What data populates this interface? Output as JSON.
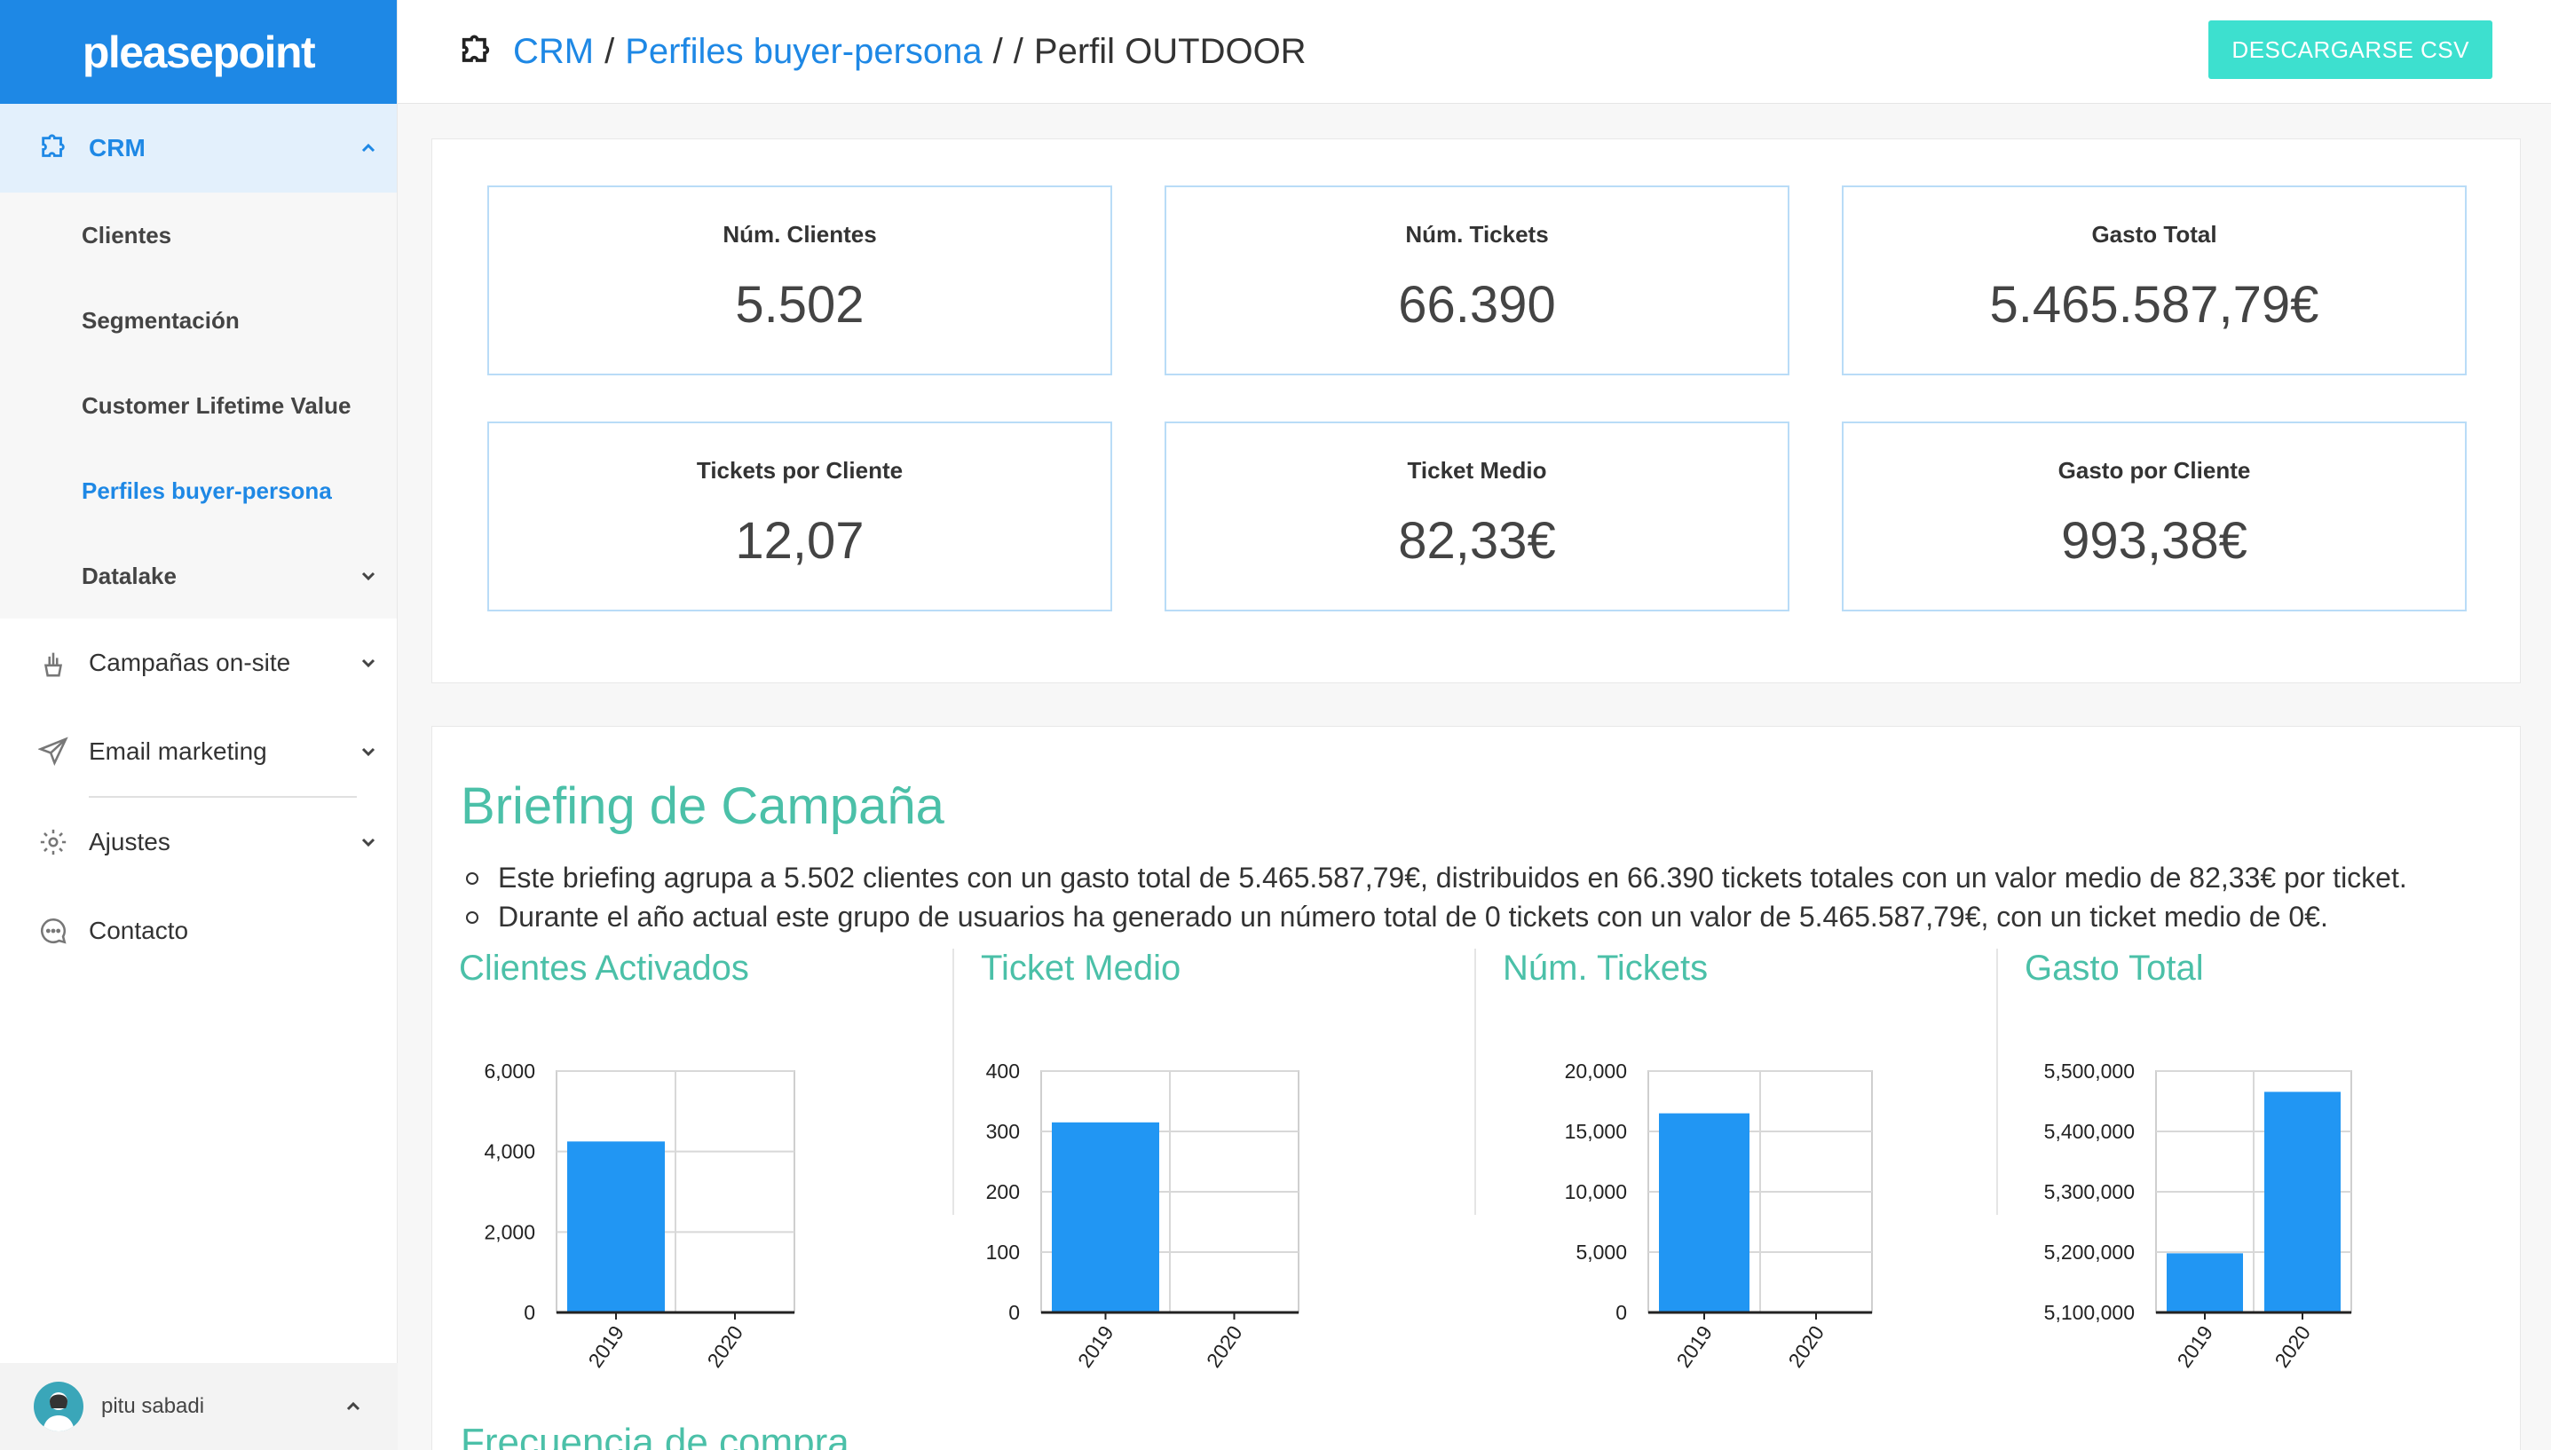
{
  "app": {
    "logo": "pleasepoint"
  },
  "sidebar": {
    "crm": {
      "label": "CRM"
    },
    "crm_items": [
      {
        "label": "Clientes"
      },
      {
        "label": "Segmentación"
      },
      {
        "label": "Customer Lifetime Value"
      },
      {
        "label": "Perfiles buyer-persona",
        "active": true
      },
      {
        "label": "Datalake"
      }
    ],
    "campanas": {
      "label": "Campañas on-site"
    },
    "email": {
      "label": "Email marketing"
    },
    "ajustes": {
      "label": "Ajustes"
    },
    "contacto": {
      "label": "Contacto"
    },
    "user": {
      "name": "pitu sabadi"
    }
  },
  "header": {
    "breadcrumb": [
      {
        "label": "CRM"
      },
      {
        "label": "Perfiles buyer-persona"
      },
      {
        "label": ""
      },
      {
        "label": "Perfil OUTDOOR"
      }
    ],
    "download_label": "DESCARGARSE CSV"
  },
  "kpis": [
    {
      "label": "Núm. Clientes",
      "value": "5.502"
    },
    {
      "label": "Núm. Tickets",
      "value": "66.390"
    },
    {
      "label": "Gasto Total",
      "value": "5.465.587,79€"
    },
    {
      "label": "Tickets por Cliente",
      "value": "12,07"
    },
    {
      "label": "Ticket Medio",
      "value": "82,33€"
    },
    {
      "label": "Gasto por Cliente",
      "value": "993,38€"
    }
  ],
  "briefing": {
    "title": "Briefing de Campaña",
    "lines": [
      "Este briefing agrupa a 5.502 clientes con un gasto total de 5.465.587,79€, distribuidos en 66.390 tickets totales con un valor medio de 82,33€ por ticket.",
      "Durante el año actual este grupo de usuarios ha generado un número total de 0 tickets con un valor de 5.465.587,79€, con un ticket medio de 0€."
    ],
    "next_section": "Frecuencia de compra"
  },
  "colors": {
    "brand": "#1e88e5",
    "accent": "#4bc0a8",
    "button": "#3de0cf",
    "bar": "#2196f3"
  },
  "chart_data": [
    {
      "type": "bar",
      "title": "Clientes Activados",
      "categories": [
        "2019",
        "2020"
      ],
      "values": [
        4250,
        0
      ],
      "ylim": [
        0,
        6000
      ],
      "yticks": [
        0,
        2000,
        4000,
        6000
      ],
      "grid": true
    },
    {
      "type": "bar",
      "title": "Ticket Medio",
      "categories": [
        "2019",
        "2020"
      ],
      "values": [
        315,
        0
      ],
      "ylim": [
        0,
        400
      ],
      "yticks": [
        0,
        100,
        200,
        300,
        400
      ],
      "grid": true
    },
    {
      "type": "bar",
      "title": "Núm. Tickets",
      "categories": [
        "2019",
        "2020"
      ],
      "values": [
        16500,
        0
      ],
      "ylim": [
        0,
        20000
      ],
      "yticks": [
        0,
        5000,
        10000,
        15000,
        20000
      ],
      "grid": true
    },
    {
      "type": "bar",
      "title": "Gasto Total",
      "categories": [
        "2019",
        "2020"
      ],
      "values": [
        5198000,
        5465588
      ],
      "ylim": [
        5100000,
        5500000
      ],
      "yticks": [
        5100000,
        5200000,
        5300000,
        5400000,
        5500000
      ],
      "grid": true
    }
  ]
}
